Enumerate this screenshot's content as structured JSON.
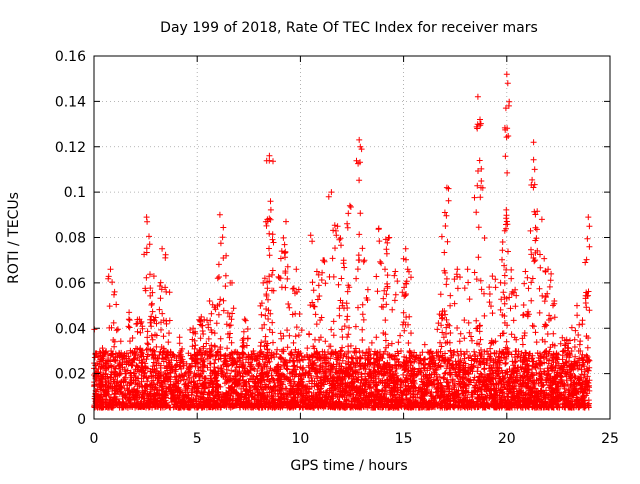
{
  "chart_data": {
    "type": "scatter",
    "title": "Day 199 of 2018, Rate Of TEC Index for receiver mars",
    "xlabel": "GPS time / hours",
    "ylabel": "ROTI / TECUs",
    "xlim": [
      0,
      25
    ],
    "ylim": [
      0,
      0.16
    ],
    "xticks": [
      "0",
      "5",
      "10",
      "15",
      "20",
      "25"
    ],
    "yticks": [
      "0",
      "0.02",
      "0.04",
      "0.06",
      "0.08",
      "0.1",
      "0.12",
      "0.14",
      "0.16"
    ],
    "grid": true,
    "marker": "+",
    "series_color": "#ff0000",
    "x_range_data": [
      0,
      24
    ],
    "baseline_band": [
      0.005,
      0.03
    ],
    "spikes": [
      {
        "x": 0.8,
        "y": 0.066
      },
      {
        "x": 1.0,
        "y": 0.056
      },
      {
        "x": 1.7,
        "y": 0.047
      },
      {
        "x": 2.2,
        "y": 0.044
      },
      {
        "x": 2.55,
        "y": 0.089
      },
      {
        "x": 2.7,
        "y": 0.077
      },
      {
        "x": 2.9,
        "y": 0.063
      },
      {
        "x": 3.3,
        "y": 0.075
      },
      {
        "x": 3.5,
        "y": 0.056
      },
      {
        "x": 4.8,
        "y": 0.04
      },
      {
        "x": 5.2,
        "y": 0.045
      },
      {
        "x": 5.6,
        "y": 0.052
      },
      {
        "x": 6.0,
        "y": 0.062
      },
      {
        "x": 6.1,
        "y": 0.09
      },
      {
        "x": 6.4,
        "y": 0.072
      },
      {
        "x": 6.6,
        "y": 0.06
      },
      {
        "x": 7.3,
        "y": 0.044
      },
      {
        "x": 8.2,
        "y": 0.06
      },
      {
        "x": 8.4,
        "y": 0.088
      },
      {
        "x": 8.5,
        "y": 0.116
      },
      {
        "x": 8.55,
        "y": 0.096
      },
      {
        "x": 9.1,
        "y": 0.074
      },
      {
        "x": 9.3,
        "y": 0.087
      },
      {
        "x": 9.8,
        "y": 0.066
      },
      {
        "x": 10.5,
        "y": 0.081
      },
      {
        "x": 10.8,
        "y": 0.065
      },
      {
        "x": 11.1,
        "y": 0.07
      },
      {
        "x": 11.5,
        "y": 0.1
      },
      {
        "x": 11.8,
        "y": 0.085
      },
      {
        "x": 12.1,
        "y": 0.07
      },
      {
        "x": 12.4,
        "y": 0.094
      },
      {
        "x": 12.85,
        "y": 0.123
      },
      {
        "x": 12.9,
        "y": 0.12
      },
      {
        "x": 13.1,
        "y": 0.07
      },
      {
        "x": 13.8,
        "y": 0.084
      },
      {
        "x": 14.1,
        "y": 0.066
      },
      {
        "x": 14.3,
        "y": 0.08
      },
      {
        "x": 14.6,
        "y": 0.065
      },
      {
        "x": 15.1,
        "y": 0.075
      },
      {
        "x": 15.2,
        "y": 0.066
      },
      {
        "x": 16.8,
        "y": 0.055
      },
      {
        "x": 17.0,
        "y": 0.091
      },
      {
        "x": 17.1,
        "y": 0.102
      },
      {
        "x": 17.6,
        "y": 0.066
      },
      {
        "x": 18.1,
        "y": 0.066
      },
      {
        "x": 18.6,
        "y": 0.142
      },
      {
        "x": 18.7,
        "y": 0.132
      },
      {
        "x": 18.75,
        "y": 0.102
      },
      {
        "x": 19.3,
        "y": 0.063
      },
      {
        "x": 19.8,
        "y": 0.078
      },
      {
        "x": 20.0,
        "y": 0.152
      },
      {
        "x": 20.05,
        "y": 0.148
      },
      {
        "x": 20.1,
        "y": 0.138
      },
      {
        "x": 20.4,
        "y": 0.057
      },
      {
        "x": 20.9,
        "y": 0.065
      },
      {
        "x": 21.3,
        "y": 0.122
      },
      {
        "x": 21.35,
        "y": 0.11
      },
      {
        "x": 21.7,
        "y": 0.088
      },
      {
        "x": 22.0,
        "y": 0.066
      },
      {
        "x": 22.3,
        "y": 0.052
      },
      {
        "x": 22.9,
        "y": 0.035
      },
      {
        "x": 23.4,
        "y": 0.05
      },
      {
        "x": 23.8,
        "y": 0.069
      },
      {
        "x": 23.95,
        "y": 0.089
      }
    ]
  }
}
